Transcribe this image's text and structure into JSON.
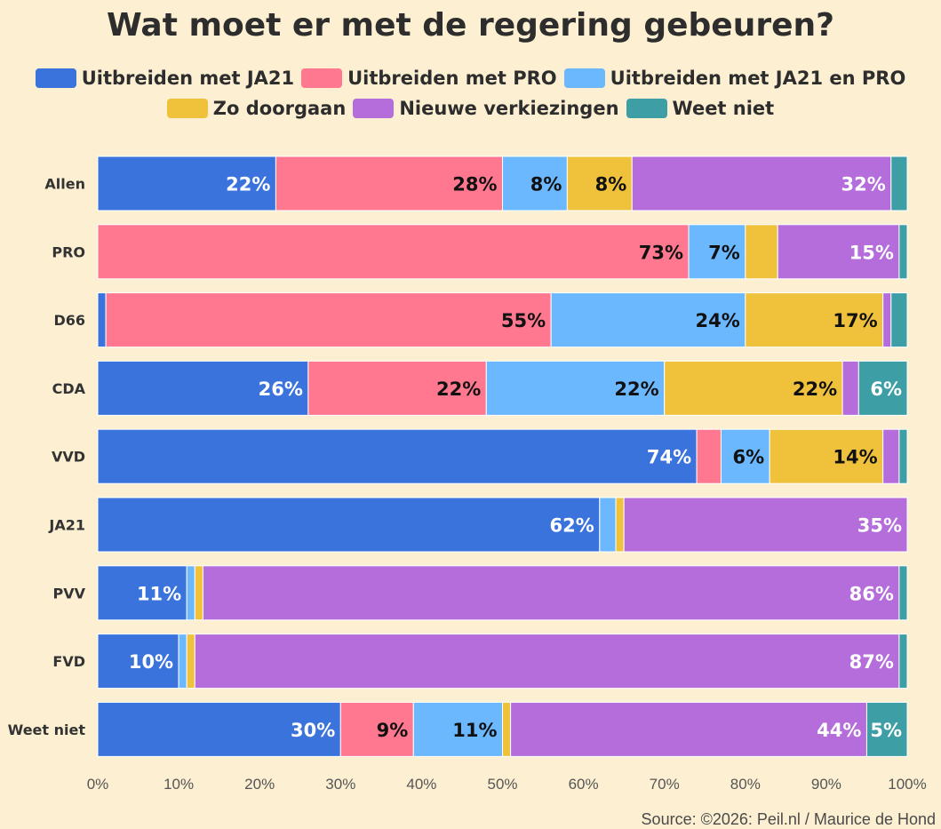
{
  "title": "Wat moet er met de regering gebeuren?",
  "source": "Source: ©2026: Peil.nl / Maurice de Hond",
  "chart_data": {
    "type": "bar",
    "orientation": "horizontal",
    "stacked": true,
    "title": "Wat moet er met de regering gebeuren?",
    "categories": [
      "Allen",
      "PRO",
      "D66",
      "CDA",
      "VVD",
      "JA21",
      "PVV",
      "FVD",
      "Weet niet"
    ],
    "xlim": [
      0,
      100
    ],
    "x_ticks": [
      "0%",
      "10%",
      "20%",
      "30%",
      "40%",
      "50%",
      "60%",
      "70%",
      "80%",
      "90%",
      "100%"
    ],
    "legend_position": "top",
    "series": [
      {
        "name": "Uitbreiden met JA21",
        "color": "#3b73dd",
        "label_color": "#ffffff",
        "values": [
          22,
          0,
          1,
          26,
          74,
          62,
          11,
          10,
          30
        ],
        "labels": [
          "22%",
          "",
          "",
          "26%",
          "74%",
          "62%",
          "11%",
          "10%",
          "30%"
        ]
      },
      {
        "name": "Uitbreiden met PRO",
        "color": "#ff7890",
        "label_color": "#111111",
        "values": [
          28,
          73,
          55,
          22,
          3,
          0,
          0,
          0,
          9
        ],
        "labels": [
          "28%",
          "73%",
          "55%",
          "22%",
          "",
          "",
          "",
          "",
          "9%"
        ]
      },
      {
        "name": "Uitbreiden met JA21 en PRO",
        "color": "#6bb8ff",
        "label_color": "#111111",
        "values": [
          8,
          7,
          24,
          22,
          6,
          2,
          1,
          1,
          11
        ],
        "labels": [
          "8%",
          "7%",
          "24%",
          "22%",
          "6%",
          "",
          "",
          "",
          "11%"
        ]
      },
      {
        "name": "Zo doorgaan",
        "color": "#f0c23b",
        "label_color": "#111111",
        "values": [
          8,
          4,
          17,
          22,
          14,
          1,
          1,
          1,
          1
        ],
        "labels": [
          "8%",
          "",
          "17%",
          "22%",
          "14%",
          "",
          "",
          "",
          ""
        ]
      },
      {
        "name": "Nieuwe verkiezingen",
        "color": "#b46ddb",
        "label_color": "#ffffff",
        "values": [
          32,
          15,
          1,
          2,
          2,
          35,
          86,
          87,
          44
        ],
        "labels": [
          "32%",
          "15%",
          "",
          "",
          "",
          "35%",
          "86%",
          "87%",
          "44%"
        ]
      },
      {
        "name": "Weet niet",
        "color": "#3d9ea6",
        "label_color": "#ffffff",
        "values": [
          2,
          1,
          2,
          6,
          1,
          0,
          1,
          1,
          5
        ],
        "labels": [
          "",
          "",
          "",
          "6%",
          "",
          "",
          "",
          "",
          "5%"
        ]
      }
    ]
  }
}
